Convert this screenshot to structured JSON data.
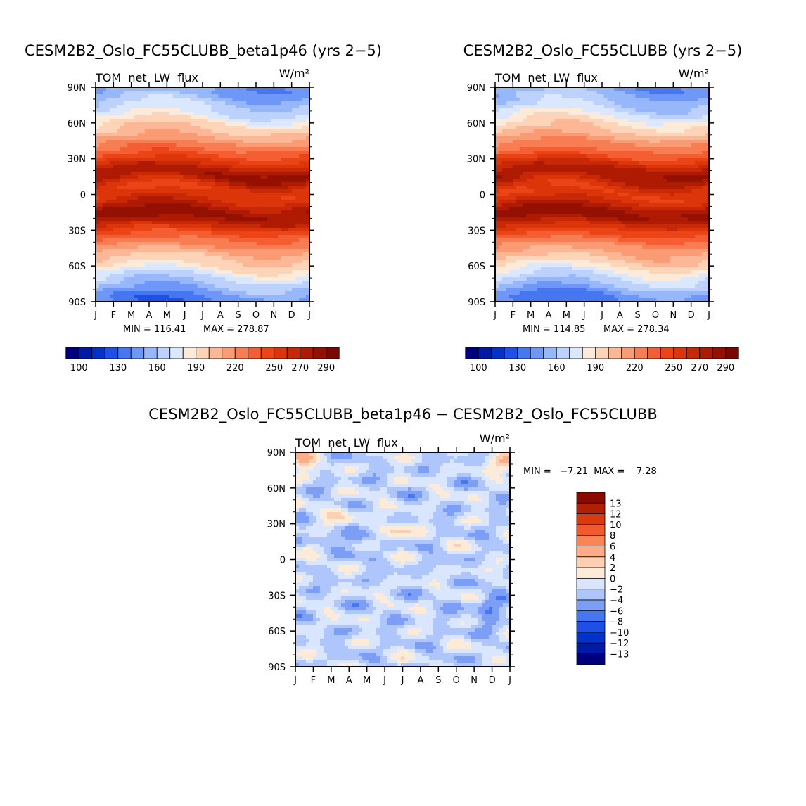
{
  "chart_data": [
    {
      "type": "heatmap",
      "title": "CESM2B2_Oslo_FC55CLUBB_beta1p46 (yrs 2−5)",
      "variable": "TOM  net  LW  flux",
      "units": "W/m²",
      "x_ticks": [
        "J",
        "F",
        "M",
        "A",
        "M",
        "J",
        "J",
        "A",
        "S",
        "O",
        "N",
        "D",
        "J"
      ],
      "y_ticks": [
        "90N",
        "60N",
        "30N",
        "0",
        "30S",
        "60S",
        "90S"
      ],
      "y_values": [
        90,
        60,
        30,
        0,
        -30,
        -60,
        -90
      ],
      "min_label": "MIN = 116.41",
      "max_label": "MAX = 278.87",
      "min": 116.41,
      "max": 278.87,
      "levels": [
        100,
        110,
        120,
        130,
        140,
        150,
        160,
        170,
        180,
        190,
        200,
        210,
        220,
        230,
        240,
        250,
        260,
        270,
        280,
        290,
        300
      ],
      "colorbar_labels": [
        "100",
        "130",
        "160",
        "190",
        "220",
        "250",
        "270",
        "290"
      ],
      "colorbar_label_values": [
        100,
        130,
        160,
        190,
        220,
        250,
        270,
        290
      ],
      "variant": 0
    },
    {
      "type": "heatmap",
      "title": "CESM2B2_Oslo_FC55CLUBB (yrs 2−5)",
      "variable": "TOM  net  LW  flux",
      "units": "W/m²",
      "x_ticks": [
        "J",
        "F",
        "M",
        "A",
        "M",
        "J",
        "J",
        "A",
        "S",
        "O",
        "N",
        "D",
        "J"
      ],
      "y_ticks": [
        "90N",
        "60N",
        "30N",
        "0",
        "30S",
        "60S",
        "90S"
      ],
      "y_values": [
        90,
        60,
        30,
        0,
        -30,
        -60,
        -90
      ],
      "min_label": "MIN = 114.85",
      "max_label": "MAX = 278.34",
      "min": 114.85,
      "max": 278.34,
      "levels": [
        100,
        110,
        120,
        130,
        140,
        150,
        160,
        170,
        180,
        190,
        200,
        210,
        220,
        230,
        240,
        250,
        260,
        270,
        280,
        290,
        300
      ],
      "colorbar_labels": [
        "100",
        "130",
        "160",
        "190",
        "220",
        "250",
        "270",
        "290"
      ],
      "colorbar_label_values": [
        100,
        130,
        160,
        190,
        220,
        250,
        270,
        290
      ],
      "variant": 1
    },
    {
      "type": "heatmap",
      "title": "CESM2B2_Oslo_FC55CLUBB_beta1p46 − CESM2B2_Oslo_FC55CLUBB",
      "variable": "TOM  net  LW  flux",
      "units": "W/m²",
      "x_ticks": [
        "J",
        "F",
        "M",
        "A",
        "M",
        "J",
        "J",
        "A",
        "S",
        "O",
        "N",
        "D",
        "J"
      ],
      "y_ticks": [
        "90N",
        "60N",
        "30N",
        "0",
        "30S",
        "60S",
        "90S"
      ],
      "y_values": [
        90,
        60,
        30,
        0,
        -30,
        -60,
        -90
      ],
      "stats_label": "MIN =   −7.21  MAX =    7.28",
      "min": -7.21,
      "max": 7.28,
      "levels": [
        -13,
        -12,
        -10,
        -8,
        -6,
        -4,
        -2,
        0,
        2,
        4,
        6,
        8,
        10,
        12,
        13
      ],
      "colorbar_labels": [
        "13",
        "12",
        "10",
        "8",
        "6",
        "4",
        "2",
        "0",
        "−2",
        "−4",
        "−6",
        "−8",
        "−10",
        "−12",
        "−13"
      ]
    }
  ],
  "colors": {
    "abs": [
      "#00007f",
      "#001aa8",
      "#0033cc",
      "#1e4fe6",
      "#4777f0",
      "#6e97f7",
      "#97b7fb",
      "#bcd2fd",
      "#dbe7fd",
      "#fdebda",
      "#fdd4b8",
      "#fcb896",
      "#fb9b74",
      "#f87d52",
      "#f45e32",
      "#ea4417",
      "#db3509",
      "#c82805",
      "#af1b02",
      "#941000",
      "#7a0700"
    ],
    "diff": [
      "#00007f",
      "#001aa8",
      "#0033cc",
      "#1e4fe6",
      "#4777f0",
      "#7d9ef6",
      "#aec6fb",
      "#d9e6fd",
      "#fdebda",
      "#fdd0b2",
      "#fcad88",
      "#f98457",
      "#f2592b",
      "#d93a0e",
      "#b02006",
      "#8a0a00"
    ]
  }
}
